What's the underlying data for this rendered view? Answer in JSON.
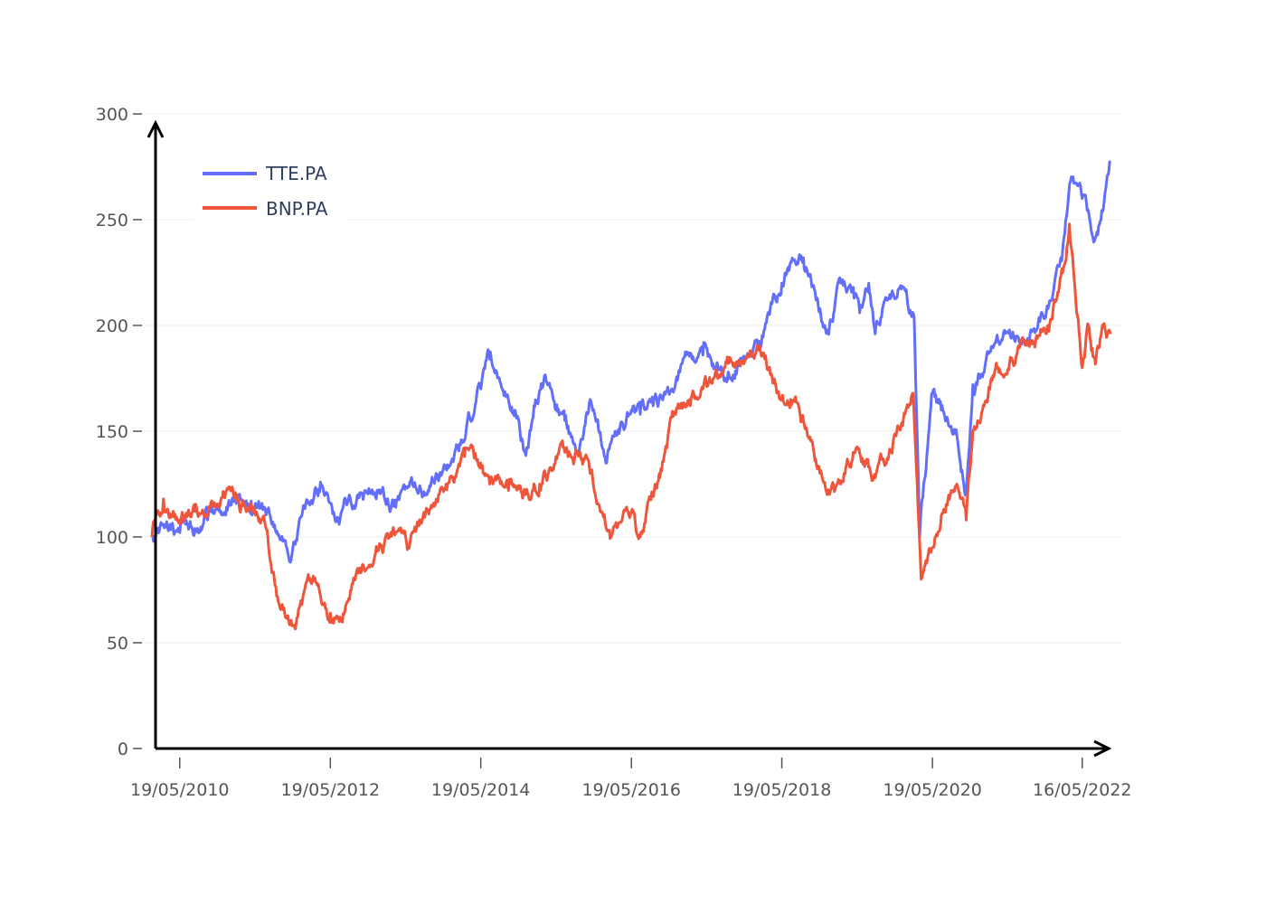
{
  "chart_data": {
    "type": "line",
    "title": "",
    "xlabel": "",
    "ylabel": "",
    "ylim": [
      0,
      300
    ],
    "y_ticks": [
      0,
      50,
      100,
      150,
      200,
      250,
      300
    ],
    "x_ticks": [
      "19/05/2010",
      "19/05/2012",
      "19/05/2014",
      "19/05/2016",
      "19/05/2018",
      "19/05/2020",
      "16/05/2022"
    ],
    "x_range": [
      "2010-01-04",
      "2022-09-30"
    ],
    "grid": true,
    "legend_position": "top-left",
    "series": [
      {
        "name": "TTE.PA",
        "color": "#636efa",
        "points": [
          [
            "2010-01-04",
            100
          ],
          [
            "2010-03-01",
            106
          ],
          [
            "2010-05-19",
            102
          ],
          [
            "2010-08-01",
            104
          ],
          [
            "2010-10-01",
            108
          ],
          [
            "2011-01-01",
            114
          ],
          [
            "2011-03-01",
            120
          ],
          [
            "2011-05-01",
            117
          ],
          [
            "2011-08-01",
            110
          ],
          [
            "2011-10-01",
            98
          ],
          [
            "2011-11-15",
            92
          ],
          [
            "2012-01-01",
            110
          ],
          [
            "2012-04-01",
            126
          ],
          [
            "2012-05-19",
            116
          ],
          [
            "2012-07-01",
            106
          ],
          [
            "2012-08-15",
            118
          ],
          [
            "2012-10-01",
            120
          ],
          [
            "2013-01-01",
            122
          ],
          [
            "2013-04-01",
            114
          ],
          [
            "2013-06-01",
            124
          ],
          [
            "2013-09-01",
            120
          ],
          [
            "2013-12-01",
            132
          ],
          [
            "2014-03-01",
            146
          ],
          [
            "2014-05-19",
            170
          ],
          [
            "2014-07-01",
            184
          ],
          [
            "2014-09-01",
            170
          ],
          [
            "2014-11-01",
            160
          ],
          [
            "2014-12-20",
            140
          ],
          [
            "2015-02-01",
            162
          ],
          [
            "2015-04-01",
            174
          ],
          [
            "2015-05-19",
            160
          ],
          [
            "2015-07-01",
            155
          ],
          [
            "2015-09-01",
            140
          ],
          [
            "2015-11-01",
            165
          ],
          [
            "2016-01-20",
            135
          ],
          [
            "2016-03-01",
            150
          ],
          [
            "2016-05-19",
            160
          ],
          [
            "2016-07-01",
            158
          ],
          [
            "2016-09-01",
            162
          ],
          [
            "2016-12-01",
            170
          ],
          [
            "2017-02-01",
            185
          ],
          [
            "2017-05-01",
            186
          ],
          [
            "2017-07-01",
            180
          ],
          [
            "2017-09-01",
            178
          ],
          [
            "2017-12-01",
            186
          ],
          [
            "2018-02-01",
            190
          ],
          [
            "2018-05-19",
            220
          ],
          [
            "2018-07-01",
            230
          ],
          [
            "2018-09-01",
            232
          ],
          [
            "2018-11-01",
            212
          ],
          [
            "2018-12-25",
            198
          ],
          [
            "2019-03-01",
            220
          ],
          [
            "2019-05-01",
            218
          ],
          [
            "2019-06-01",
            206
          ],
          [
            "2019-07-15",
            220
          ],
          [
            "2019-08-15",
            196
          ],
          [
            "2019-10-01",
            212
          ],
          [
            "2020-01-01",
            218
          ],
          [
            "2020-02-20",
            204
          ],
          [
            "2020-03-18",
            100
          ],
          [
            "2020-05-19",
            168
          ],
          [
            "2020-07-01",
            160
          ],
          [
            "2020-09-15",
            148
          ],
          [
            "2020-10-30",
            122
          ],
          [
            "2020-12-01",
            172
          ],
          [
            "2021-03-01",
            190
          ],
          [
            "2021-06-01",
            195
          ],
          [
            "2021-09-01",
            192
          ],
          [
            "2021-12-01",
            208
          ],
          [
            "2022-02-01",
            232
          ],
          [
            "2022-03-20",
            268
          ],
          [
            "2022-05-16",
            260
          ],
          [
            "2022-07-15",
            240
          ],
          [
            "2022-08-15",
            250
          ],
          [
            "2022-09-30",
            277
          ]
        ]
      },
      {
        "name": "BNP.PA",
        "color": "#ef553b",
        "points": [
          [
            "2010-01-04",
            100
          ],
          [
            "2010-03-01",
            118
          ],
          [
            "2010-05-19",
            108
          ],
          [
            "2010-08-01",
            112
          ],
          [
            "2010-10-01",
            110
          ],
          [
            "2011-01-01",
            122
          ],
          [
            "2011-03-01",
            118
          ],
          [
            "2011-05-01",
            115
          ],
          [
            "2011-07-01",
            110
          ],
          [
            "2011-09-01",
            72
          ],
          [
            "2011-11-15",
            58
          ],
          [
            "2012-01-01",
            68
          ],
          [
            "2012-03-01",
            80
          ],
          [
            "2012-05-19",
            64
          ],
          [
            "2012-07-01",
            60
          ],
          [
            "2012-09-01",
            78
          ],
          [
            "2013-01-01",
            94
          ],
          [
            "2013-04-01",
            102
          ],
          [
            "2013-06-01",
            95
          ],
          [
            "2013-09-01",
            112
          ],
          [
            "2013-12-01",
            125
          ],
          [
            "2014-03-01",
            138
          ],
          [
            "2014-05-19",
            135
          ],
          [
            "2014-07-01",
            125
          ],
          [
            "2014-10-01",
            122
          ],
          [
            "2014-12-20",
            120
          ],
          [
            "2015-03-01",
            125
          ],
          [
            "2015-05-19",
            138
          ],
          [
            "2015-07-01",
            140
          ],
          [
            "2015-09-01",
            140
          ],
          [
            "2015-11-01",
            130
          ],
          [
            "2016-02-10",
            100
          ],
          [
            "2016-05-19",
            112
          ],
          [
            "2016-07-01",
            100
          ],
          [
            "2016-10-01",
            130
          ],
          [
            "2016-12-20",
            158
          ],
          [
            "2017-03-01",
            162
          ],
          [
            "2017-05-01",
            170
          ],
          [
            "2017-07-01",
            178
          ],
          [
            "2017-09-01",
            182
          ],
          [
            "2017-12-01",
            185
          ],
          [
            "2018-02-01",
            190
          ],
          [
            "2018-05-19",
            165
          ],
          [
            "2018-07-01",
            165
          ],
          [
            "2018-09-01",
            155
          ],
          [
            "2018-12-25",
            120
          ],
          [
            "2019-03-01",
            125
          ],
          [
            "2019-05-01",
            140
          ],
          [
            "2019-08-15",
            128
          ],
          [
            "2019-11-01",
            140
          ],
          [
            "2020-02-15",
            168
          ],
          [
            "2020-03-25",
            80
          ],
          [
            "2020-05-19",
            95
          ],
          [
            "2020-07-01",
            110
          ],
          [
            "2020-09-15",
            125
          ],
          [
            "2020-10-30",
            108
          ],
          [
            "2020-12-01",
            150
          ],
          [
            "2021-03-01",
            175
          ],
          [
            "2021-06-01",
            185
          ],
          [
            "2021-09-01",
            190
          ],
          [
            "2021-12-01",
            200
          ],
          [
            "2022-02-10",
            225
          ],
          [
            "2022-03-15",
            248
          ],
          [
            "2022-05-16",
            180
          ],
          [
            "2022-06-15",
            200
          ],
          [
            "2022-07-15",
            185
          ],
          [
            "2022-08-15",
            195
          ],
          [
            "2022-09-30",
            196
          ]
        ]
      }
    ]
  }
}
